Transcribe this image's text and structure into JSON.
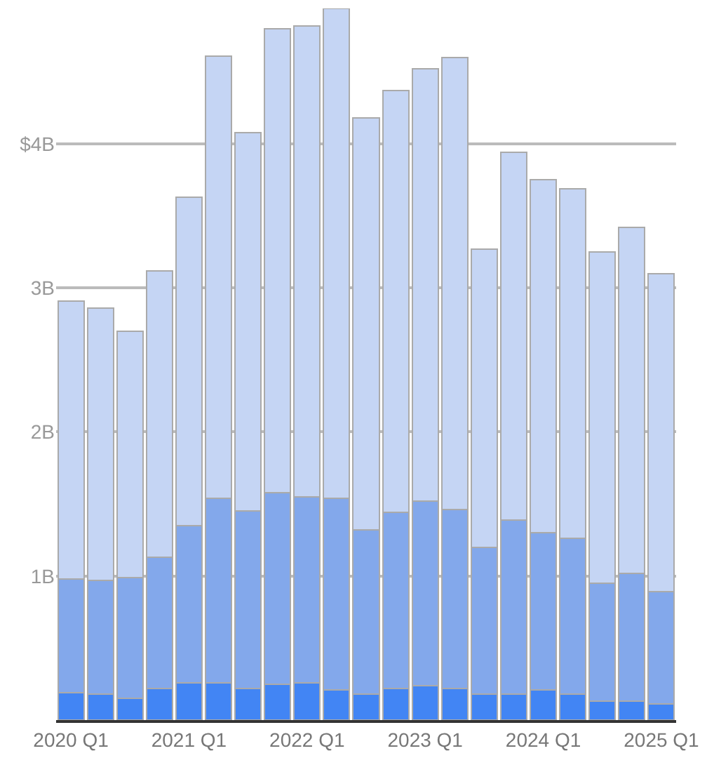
{
  "chart_data": {
    "type": "bar",
    "stacked": true,
    "categories": [
      "2020 Q1",
      null,
      null,
      null,
      "2021 Q1",
      null,
      null,
      null,
      "2022 Q1",
      null,
      null,
      null,
      "2023 Q1",
      null,
      null,
      null,
      "2024 Q1",
      null,
      null,
      null,
      "2025 Q1"
    ],
    "series": [
      {
        "color": "#4285f4",
        "values": [
          0.19,
          0.18,
          0.15,
          0.22,
          0.26,
          0.26,
          0.22,
          0.25,
          0.26,
          0.21,
          0.18,
          0.22,
          0.24,
          0.22,
          0.18,
          0.18,
          0.21,
          0.18,
          0.13,
          0.13,
          0.11
        ]
      },
      {
        "color": "#83a8eb",
        "values": [
          0.79,
          0.79,
          0.84,
          0.91,
          1.09,
          1.28,
          1.23,
          1.33,
          1.29,
          1.33,
          1.14,
          1.22,
          1.28,
          1.24,
          1.02,
          1.21,
          1.09,
          1.08,
          0.82,
          0.89,
          0.78
        ]
      },
      {
        "color": "#c5d5f4",
        "values": [
          1.93,
          1.89,
          1.71,
          1.99,
          2.28,
          3.07,
          2.63,
          3.22,
          3.27,
          3.4,
          2.86,
          2.93,
          3.0,
          3.14,
          2.07,
          2.55,
          2.45,
          2.43,
          2.3,
          2.4,
          2.21
        ]
      }
    ],
    "yticks": [
      {
        "value": 1,
        "label": "1B"
      },
      {
        "value": 2,
        "label": "2B"
      },
      {
        "value": 3,
        "label": "3B"
      },
      {
        "value": 4,
        "label": "$4B"
      }
    ],
    "ylim": [
      0,
      4.94
    ],
    "grid": "y"
  }
}
